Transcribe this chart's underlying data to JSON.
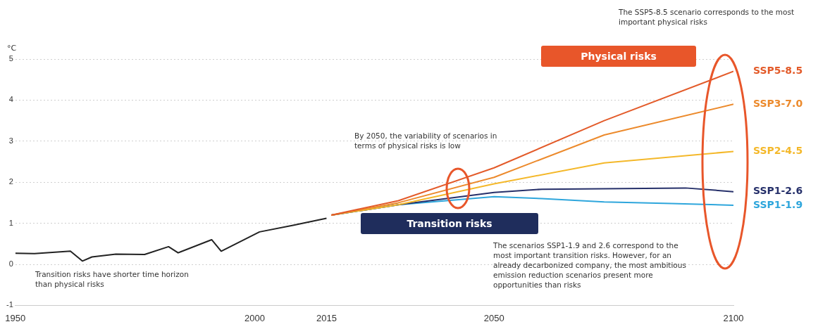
{
  "chart_data": {
    "type": "line",
    "ylabel": "°C",
    "series": [
      {
        "color": "#222222",
        "x": [
          1950,
          1954,
          1961.5,
          1964,
          1966,
          1971,
          1977,
          1982,
          1984,
          1991,
          1993,
          2001,
          2008,
          2015
        ],
        "values": [
          0.27,
          0.26,
          0.32,
          0.08,
          0.18,
          0.25,
          0.24,
          0.43,
          0.28,
          0.6,
          0.32,
          0.79,
          0.95,
          1.12
        ]
      },
      {
        "name": "SSP5-8.5",
        "color": "#e35b2a",
        "x": [
          2016,
          2030,
          2050,
          2073,
          2100
        ],
        "values": [
          1.2,
          1.55,
          2.35,
          3.5,
          4.7
        ]
      },
      {
        "name": "SSP3-7.0",
        "color": "#ec8a2c",
        "x": [
          2016,
          2030,
          2050,
          2073,
          2100
        ],
        "values": [
          1.2,
          1.5,
          2.12,
          3.15,
          3.9
        ]
      },
      {
        "name": "SSP2-4.5",
        "color": "#f4b82a",
        "x": [
          2016,
          2030,
          2050,
          2073,
          2100
        ],
        "values": [
          1.2,
          1.45,
          1.96,
          2.47,
          2.75
        ]
      },
      {
        "name": "SSP1-2.6",
        "color": "#26306a",
        "x": [
          2016,
          2030,
          2050,
          2060,
          2090,
          2100
        ],
        "values": [
          1.2,
          1.45,
          1.75,
          1.83,
          1.86,
          1.77
        ]
      },
      {
        "name": "SSP1-1.9",
        "color": "#2ea6dc",
        "x": [
          2016,
          2030,
          2050,
          2060,
          2073,
          2087,
          2100
        ],
        "values": [
          1.2,
          1.45,
          1.65,
          1.6,
          1.52,
          1.48,
          1.44
        ]
      }
    ],
    "xlim": [
      1950,
      2100
    ],
    "xticks": [
      1950,
      2000,
      2015,
      2050,
      2100
    ],
    "ylim": [
      -1,
      5
    ],
    "yticks": [
      -1,
      0,
      1,
      2,
      3,
      4,
      5
    ],
    "grid": "y",
    "legend": false,
    "marker": "none",
    "line_style": "solid",
    "annotations": [
      "The SSP5-8.5 scenario corresponds to the most important physical risks",
      "Physical risks",
      "By 2050, the variability of scenarios in terms of physical risks is low",
      "Transition risks",
      "The scenarios SSP1-1.9 and 2.6 correspond to the most important transition risks. However, for an already decarbonized company, the most ambitious emission reduction scenarios present more opportunities than risks",
      "Transition risks have shorter time horizon than physical risks"
    ]
  }
}
